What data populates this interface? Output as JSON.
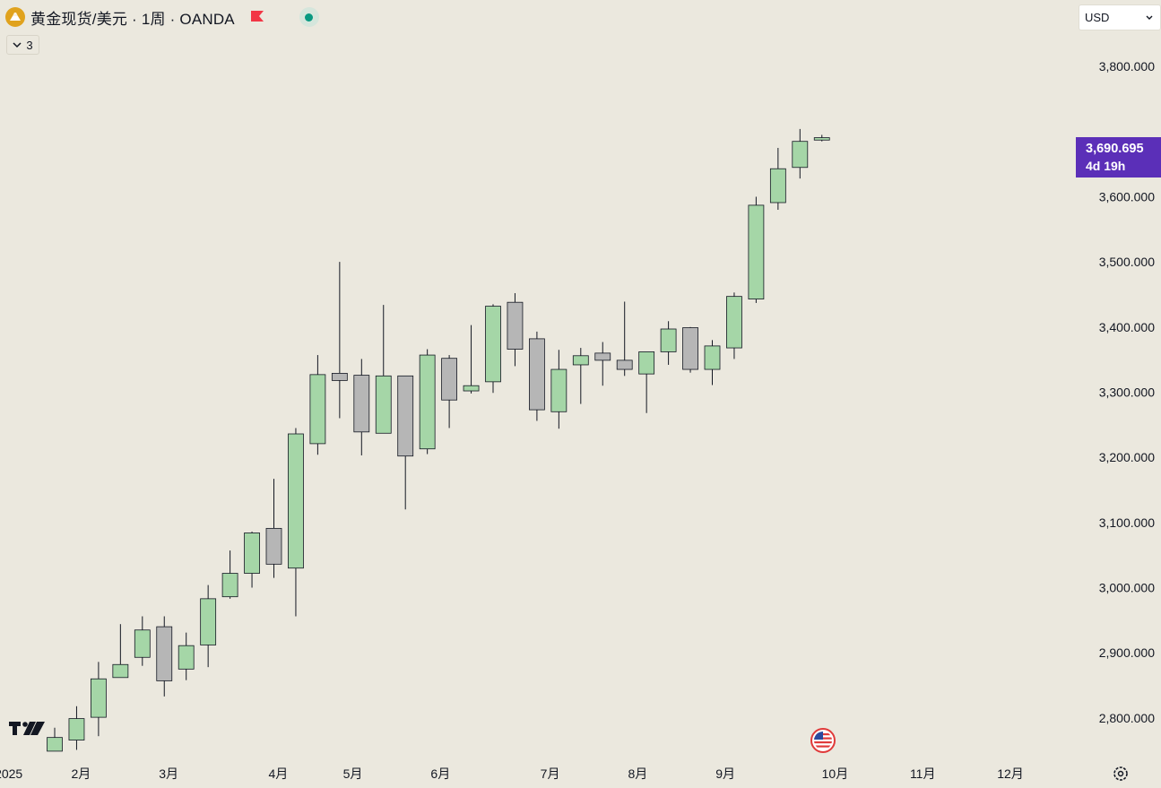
{
  "header": {
    "title": "黄金现货/美元 · 1周 · OANDA",
    "indicator_count": "3"
  },
  "currency": {
    "selected": "USD"
  },
  "price_tag": {
    "price": "3,690.695",
    "countdown": "4d 19h",
    "color": "#5b2fb8"
  },
  "colors": {
    "up": "#a5d6a7",
    "down": "#b6b6b6",
    "outline": "#131722",
    "background": "#ebe8de"
  },
  "icons": [
    "gold-coin-icon",
    "red-flag-icon",
    "market-open-dot-icon",
    "chevron-down-icon",
    "tradingview-logo-icon",
    "us-flag-event-icon",
    "settings-gear-icon"
  ],
  "chart_data": {
    "type": "candlestick",
    "timeframe": "1周",
    "y_axis": {
      "ticks": [
        2800,
        2900,
        3000,
        3100,
        3200,
        3300,
        3400,
        3500,
        3600,
        3800
      ],
      "tick_labels": [
        "2,800.000",
        "2,900.000",
        "3,000.000",
        "3,100.000",
        "3,200.000",
        "3,300.000",
        "3,400.000",
        "3,500.000",
        "3,600.000",
        "3,800.000"
      ],
      "ylim": [
        2742,
        3902
      ]
    },
    "x_axis": {
      "labels": [
        {
          "label": "2025",
          "index": -2.1
        },
        {
          "label": "2月",
          "index": 1.2
        },
        {
          "label": "3月",
          "index": 5.2
        },
        {
          "label": "4月",
          "index": 10.2
        },
        {
          "label": "5月",
          "index": 13.6
        },
        {
          "label": "6月",
          "index": 17.6
        },
        {
          "label": "7月",
          "index": 22.6
        },
        {
          "label": "8月",
          "index": 26.6
        },
        {
          "label": "9月",
          "index": 30.6
        },
        {
          "label": "10月",
          "index": 35.6
        },
        {
          "label": "11月",
          "index": 39.6
        },
        {
          "label": "12月",
          "index": 43.6
        }
      ]
    },
    "candles": [
      {
        "o": 2749,
        "h": 2785,
        "l": 2749,
        "c": 2770
      },
      {
        "o": 2766,
        "h": 2818,
        "l": 2751,
        "c": 2799
      },
      {
        "o": 2801,
        "h": 2886,
        "l": 2772,
        "c": 2860
      },
      {
        "o": 2862,
        "h": 2944,
        "l": 2862,
        "c": 2882
      },
      {
        "o": 2893,
        "h": 2956,
        "l": 2880,
        "c": 2935
      },
      {
        "o": 2940,
        "h": 2956,
        "l": 2833,
        "c": 2857
      },
      {
        "o": 2875,
        "h": 2931,
        "l": 2858,
        "c": 2911
      },
      {
        "o": 2912,
        "h": 3004,
        "l": 2878,
        "c": 2983
      },
      {
        "o": 2986,
        "h": 3057,
        "l": 2983,
        "c": 3022
      },
      {
        "o": 3022,
        "h": 3086,
        "l": 3000,
        "c": 3084
      },
      {
        "o": 3091,
        "h": 3167,
        "l": 3015,
        "c": 3036
      },
      {
        "o": 3030,
        "h": 3245,
        "l": 2956,
        "c": 3236
      },
      {
        "o": 3221,
        "h": 3357,
        "l": 3204,
        "c": 3327
      },
      {
        "o": 3329,
        "h": 3500,
        "l": 3260,
        "c": 3318
      },
      {
        "o": 3326,
        "h": 3351,
        "l": 3203,
        "c": 3239
      },
      {
        "o": 3237,
        "h": 3434,
        "l": 3237,
        "c": 3325
      },
      {
        "o": 3325,
        "h": 3325,
        "l": 3120,
        "c": 3202
      },
      {
        "o": 3213,
        "h": 3366,
        "l": 3205,
        "c": 3357
      },
      {
        "o": 3352,
        "h": 3357,
        "l": 3245,
        "c": 3288
      },
      {
        "o": 3302,
        "h": 3403,
        "l": 3298,
        "c": 3310
      },
      {
        "o": 3316,
        "h": 3435,
        "l": 3299,
        "c": 3432
      },
      {
        "o": 3438,
        "h": 3452,
        "l": 3340,
        "c": 3366
      },
      {
        "o": 3382,
        "h": 3393,
        "l": 3256,
        "c": 3273
      },
      {
        "o": 3270,
        "h": 3365,
        "l": 3244,
        "c": 3335
      },
      {
        "o": 3342,
        "h": 3368,
        "l": 3282,
        "c": 3356
      },
      {
        "o": 3360,
        "h": 3377,
        "l": 3310,
        "c": 3349
      },
      {
        "o": 3349,
        "h": 3439,
        "l": 3325,
        "c": 3335
      },
      {
        "o": 3328,
        "h": 3362,
        "l": 3268,
        "c": 3362
      },
      {
        "o": 3362,
        "h": 3409,
        "l": 3342,
        "c": 3397
      },
      {
        "o": 3399,
        "h": 3400,
        "l": 3330,
        "c": 3335
      },
      {
        "o": 3335,
        "h": 3380,
        "l": 3311,
        "c": 3371
      },
      {
        "o": 3368,
        "h": 3453,
        "l": 3351,
        "c": 3447
      },
      {
        "o": 3443,
        "h": 3600,
        "l": 3437,
        "c": 3587
      },
      {
        "o": 3591,
        "h": 3675,
        "l": 3580,
        "c": 3643
      },
      {
        "o": 3645,
        "h": 3704,
        "l": 3628,
        "c": 3685
      },
      {
        "o": 3687,
        "h": 3695,
        "l": 3685,
        "c": 3690.695
      }
    ]
  }
}
